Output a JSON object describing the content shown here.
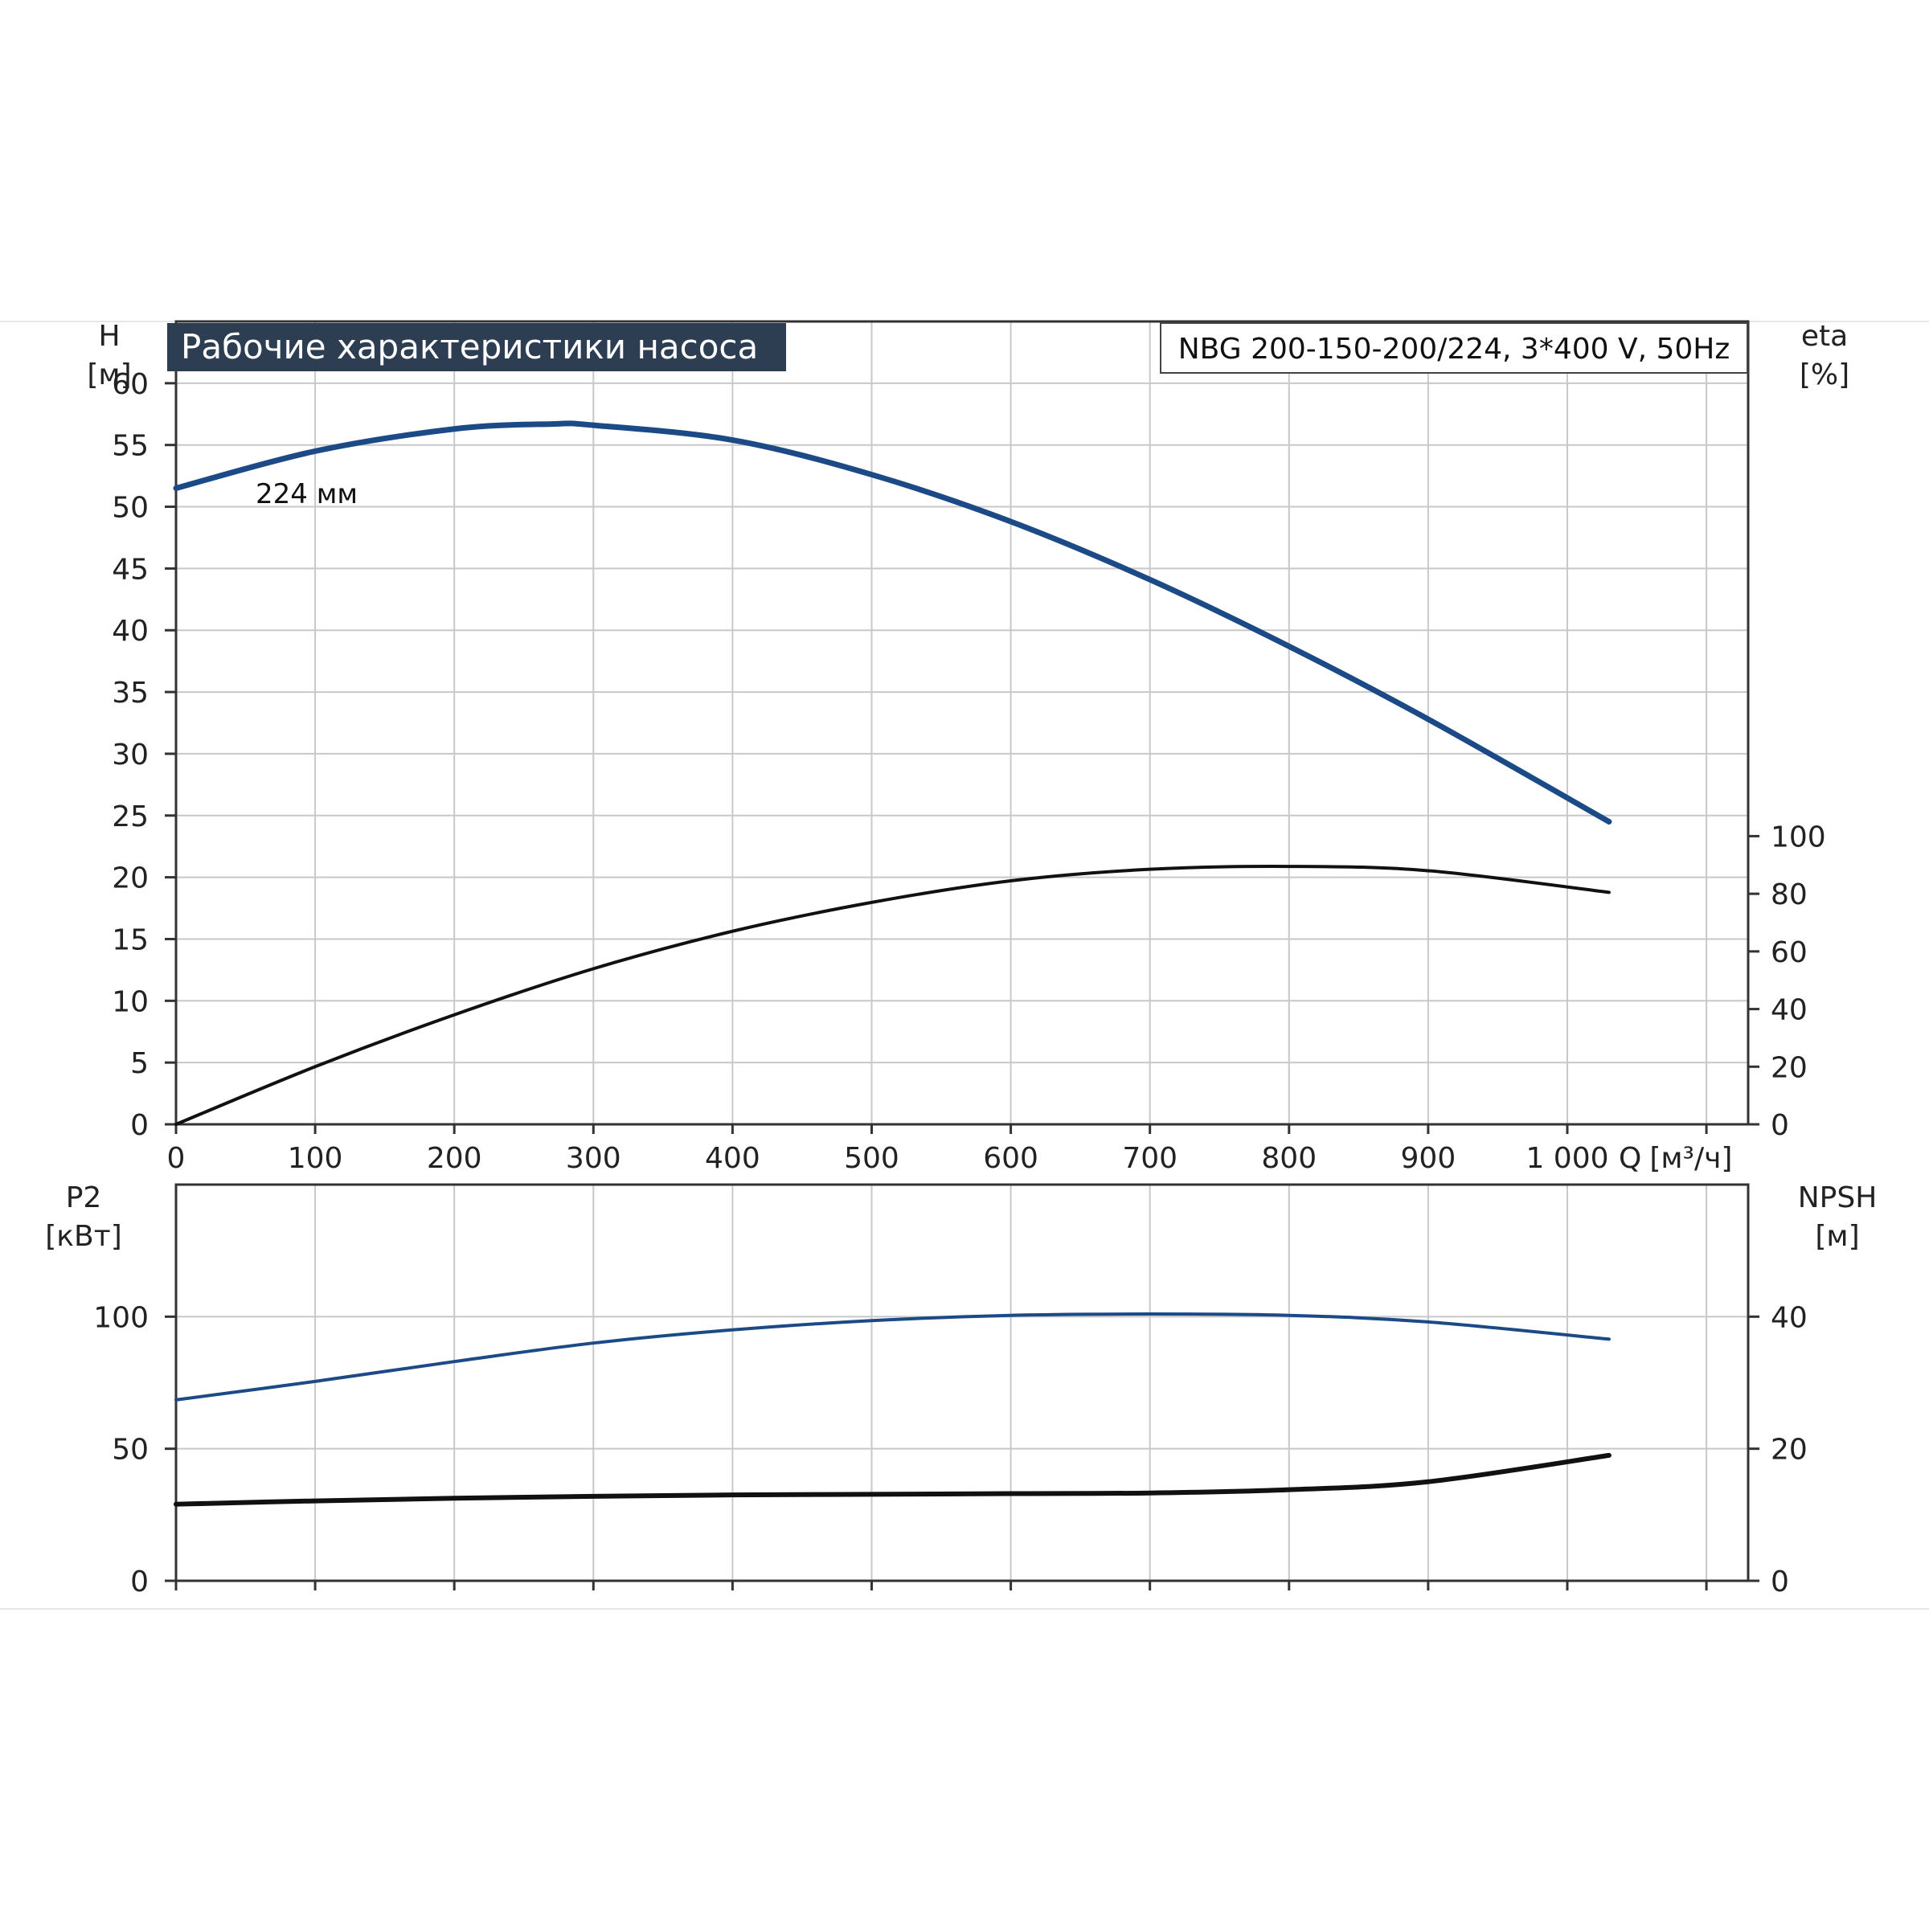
{
  "header": {
    "title": "Рабочие характеристики насоса",
    "model": "NBG 200-150-200/224, 3*400 V, 50Hz"
  },
  "colors": {
    "curve_blue": "#1b4a86",
    "curve_black": "#111111",
    "grid": "#c8c8c8",
    "title_bg": "#2e3e52"
  },
  "chart_data": [
    {
      "type": "line",
      "x_axis": {
        "label_q": "Q",
        "label_unit": "[м³/ч]",
        "range": [
          0,
          1130
        ],
        "ticks": [
          0,
          100,
          200,
          300,
          400,
          500,
          600,
          700,
          800,
          900,
          1000,
          1100
        ],
        "tick_labels": [
          "0",
          "100",
          "200",
          "300",
          "400",
          "500",
          "600",
          "700",
          "800",
          "900",
          "1 000",
          ""
        ]
      },
      "left_axis": {
        "label": "H",
        "unit": "[м]",
        "range": [
          0,
          65
        ],
        "ticks": [
          0,
          5,
          10,
          15,
          20,
          25,
          30,
          35,
          40,
          45,
          50,
          55,
          60
        ]
      },
      "right_axis": {
        "label": "eta",
        "unit": "[%]",
        "range": [
          0,
          278.6
        ],
        "ticks": [
          0,
          20,
          40,
          60,
          80,
          100
        ]
      },
      "grid": true,
      "annotation": "224 мм",
      "series": [
        {
          "axis": "left",
          "color": "#1b4a86",
          "x": [
            0,
            100,
            200,
            270,
            300,
            400,
            500,
            600,
            700,
            800,
            900,
            1030
          ],
          "y": [
            51.5,
            54.5,
            56.3,
            56.7,
            56.6,
            55.4,
            52.6,
            48.8,
            44.1,
            38.7,
            32.8,
            24.5
          ]
        },
        {
          "axis": "right",
          "color": "#111111",
          "x": [
            0,
            100,
            200,
            300,
            400,
            500,
            600,
            700,
            800,
            900,
            1030
          ],
          "y": [
            0,
            20,
            38,
            54,
            67,
            77,
            84.5,
            88.5,
            89.5,
            88,
            80.5
          ]
        }
      ]
    },
    {
      "type": "line",
      "x_axis": {
        "range": [
          0,
          1130
        ],
        "ticks": [
          0,
          100,
          200,
          300,
          400,
          500,
          600,
          700,
          800,
          900,
          1000,
          1100
        ]
      },
      "left_axis": {
        "label": "P2",
        "unit": "[кВт]",
        "range": [
          0,
          150
        ],
        "ticks": [
          0,
          50,
          100
        ]
      },
      "right_axis": {
        "label": "NPSH",
        "unit": "[м]",
        "range": [
          0,
          60
        ],
        "ticks": [
          0,
          20,
          40
        ]
      },
      "grid": true,
      "series": [
        {
          "axis": "left",
          "color": "#1b4a86",
          "x": [
            0,
            100,
            200,
            300,
            400,
            500,
            600,
            700,
            800,
            900,
            1030
          ],
          "y": [
            68.5,
            75.5,
            83,
            90,
            95,
            98.5,
            100.5,
            101,
            100.5,
            98,
            91.5
          ]
        },
        {
          "axis": "right",
          "color": "#111111",
          "x": [
            0,
            100,
            200,
            300,
            400,
            500,
            600,
            700,
            800,
            900,
            1030
          ],
          "y": [
            11.6,
            12.1,
            12.5,
            12.8,
            13.0,
            13.1,
            13.2,
            13.3,
            13.8,
            15.0,
            19.0
          ]
        }
      ]
    }
  ]
}
